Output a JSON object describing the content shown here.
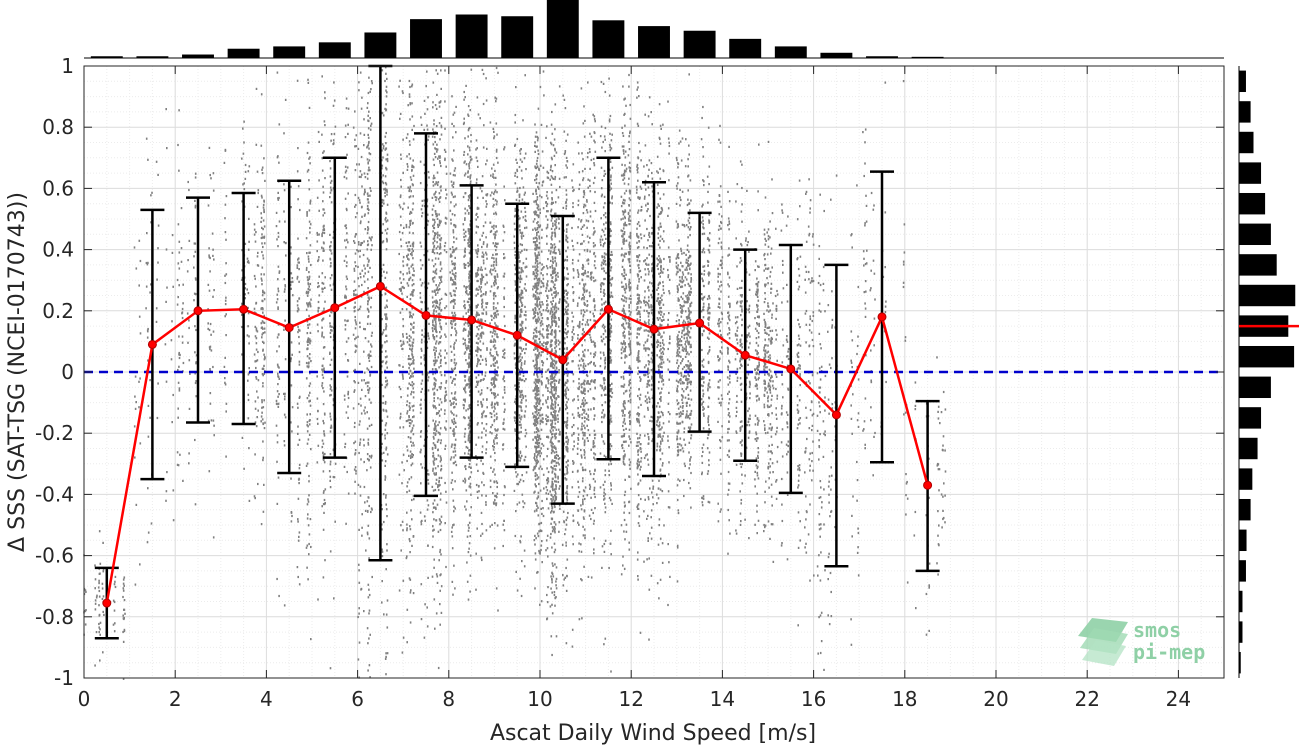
{
  "chart_data": {
    "type": "scatter",
    "xlabel": "Ascat Daily Wind Speed [m/s]",
    "ylabel": "Δ SSS (SAT-TSG (NCEI-0170743))",
    "xlim": [
      0,
      25
    ],
    "ylim": [
      -1,
      1
    ],
    "x_ticks": [
      "0",
      "2",
      "4",
      "6",
      "8",
      "10",
      "12",
      "14",
      "16",
      "18",
      "20",
      "22",
      "24"
    ],
    "y_ticks": [
      "-1",
      "-0.8",
      "-0.6",
      "-0.4",
      "-0.2",
      "0",
      "0.2",
      "0.4",
      "0.6",
      "0.8",
      "1"
    ],
    "grid": true,
    "reference_line": {
      "y": 0,
      "style": "dashed",
      "color": "#0000cc"
    },
    "binned_mean": {
      "color": "#ff0000",
      "x": [
        0.5,
        1.5,
        2.5,
        3.5,
        4.5,
        5.5,
        6.5,
        7.5,
        8.5,
        9.5,
        10.5,
        11.5,
        12.5,
        13.5,
        14.5,
        15.5,
        16.5,
        17.5,
        18.5
      ],
      "y": [
        -0.755,
        0.09,
        0.2,
        0.205,
        0.145,
        0.21,
        0.28,
        0.185,
        0.17,
        0.12,
        0.04,
        0.205,
        0.14,
        0.16,
        0.055,
        0.01,
        -0.14,
        0.18,
        -0.37
      ],
      "upper": [
        -0.64,
        0.53,
        0.57,
        0.585,
        0.625,
        0.7,
        1.0,
        0.78,
        0.61,
        0.55,
        0.51,
        0.7,
        0.62,
        0.52,
        0.4,
        0.415,
        0.35,
        0.655,
        -0.095
      ],
      "lower": [
        -0.87,
        -0.35,
        -0.165,
        -0.17,
        -0.33,
        -0.28,
        -0.615,
        -0.405,
        -0.28,
        -0.31,
        -0.43,
        -0.285,
        -0.34,
        -0.195,
        -0.29,
        -0.395,
        -0.635,
        -0.295,
        -0.65
      ]
    },
    "scatter_color": "#808080",
    "x_histogram": {
      "bins": [
        0.5,
        1.5,
        2.5,
        3.5,
        4.5,
        5.5,
        6.5,
        7.5,
        8.5,
        9.5,
        10.5,
        11.5,
        12.5,
        13.5,
        14.5,
        15.5,
        16.5,
        17.5,
        18.5
      ],
      "counts": [
        0.03,
        0.03,
        0.06,
        0.16,
        0.2,
        0.27,
        0.44,
        0.67,
        0.75,
        0.72,
        1.0,
        0.65,
        0.55,
        0.47,
        0.33,
        0.2,
        0.09,
        0.03,
        0.02
      ]
    },
    "y_histogram": {
      "bins": [
        -0.95,
        -0.85,
        -0.75,
        -0.65,
        -0.55,
        -0.45,
        -0.35,
        -0.25,
        -0.15,
        -0.05,
        0.05,
        0.15,
        0.25,
        0.35,
        0.45,
        0.55,
        0.65,
        0.75,
        0.85,
        0.95
      ],
      "counts": [
        0.03,
        0.06,
        0.06,
        0.12,
        0.13,
        0.2,
        0.23,
        0.32,
        0.38,
        0.55,
        0.95,
        0.85,
        0.97,
        0.65,
        0.55,
        0.45,
        0.38,
        0.25,
        0.2,
        0.12
      ],
      "mean_line": {
        "y": 0.15,
        "color": "#ff0000"
      }
    }
  },
  "logo": {
    "line1": "smos",
    "line2": "pi-mep"
  }
}
